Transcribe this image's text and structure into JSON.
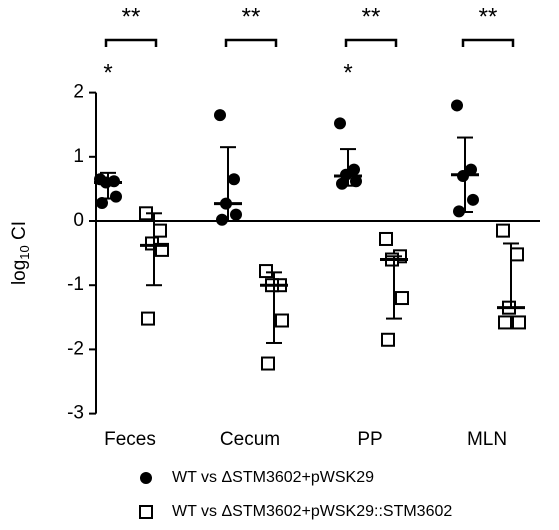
{
  "chart_data": {
    "type": "dot",
    "ylabel": "log",
    "ylabel_sub": "10",
    "ylabel_rest": " CI",
    "categories": [
      "Feces",
      "Cecum",
      "PP",
      "MLN"
    ],
    "ylim": [
      -3,
      2
    ],
    "yticks": [
      -3,
      -2,
      -1,
      0,
      1,
      2
    ],
    "series": [
      {
        "name": "WT vs ΔSTM3602+pWSK29",
        "color": "#000000",
        "marker": "circle",
        "values": [
          [
            0.65,
            0.62,
            0.6,
            0.38,
            0.28
          ],
          [
            1.65,
            0.65,
            0.27,
            0.1,
            0.02
          ],
          [
            1.52,
            0.8,
            0.72,
            0.62,
            0.58
          ],
          [
            1.8,
            0.8,
            0.7,
            0.33,
            0.15
          ]
        ],
        "means": [
          0.6,
          0.27,
          0.7,
          0.72
        ],
        "err_up": [
          0.15,
          0.88,
          0.42,
          0.58
        ],
        "err_down": [
          0.25,
          0.27,
          0.15,
          0.58
        ]
      },
      {
        "name": "WT vs ΔSTM3602+pWSK29::STM3602",
        "color": "#000000",
        "marker": "square",
        "values": [
          [
            0.12,
            -0.15,
            -0.35,
            -0.45,
            -1.52
          ],
          [
            -0.78,
            -1.0,
            -1.0,
            -1.55,
            -2.22
          ],
          [
            -0.28,
            -0.55,
            -0.6,
            -1.2,
            -1.85
          ],
          [
            -0.15,
            -0.52,
            -1.35,
            -1.58,
            -1.58
          ]
        ],
        "means": [
          -0.38,
          -1.0,
          -0.6,
          -1.35
        ],
        "err_up": [
          0.5,
          0.2,
          0.05,
          1.0
        ],
        "err_down": [
          0.62,
          0.9,
          0.92,
          0.0
        ]
      }
    ],
    "brackets": [
      "**",
      "**",
      "**",
      "**"
    ],
    "single_marks": [
      {
        "category": "Feces",
        "label": "*"
      },
      {
        "category": "PP",
        "label": "*"
      }
    ]
  }
}
